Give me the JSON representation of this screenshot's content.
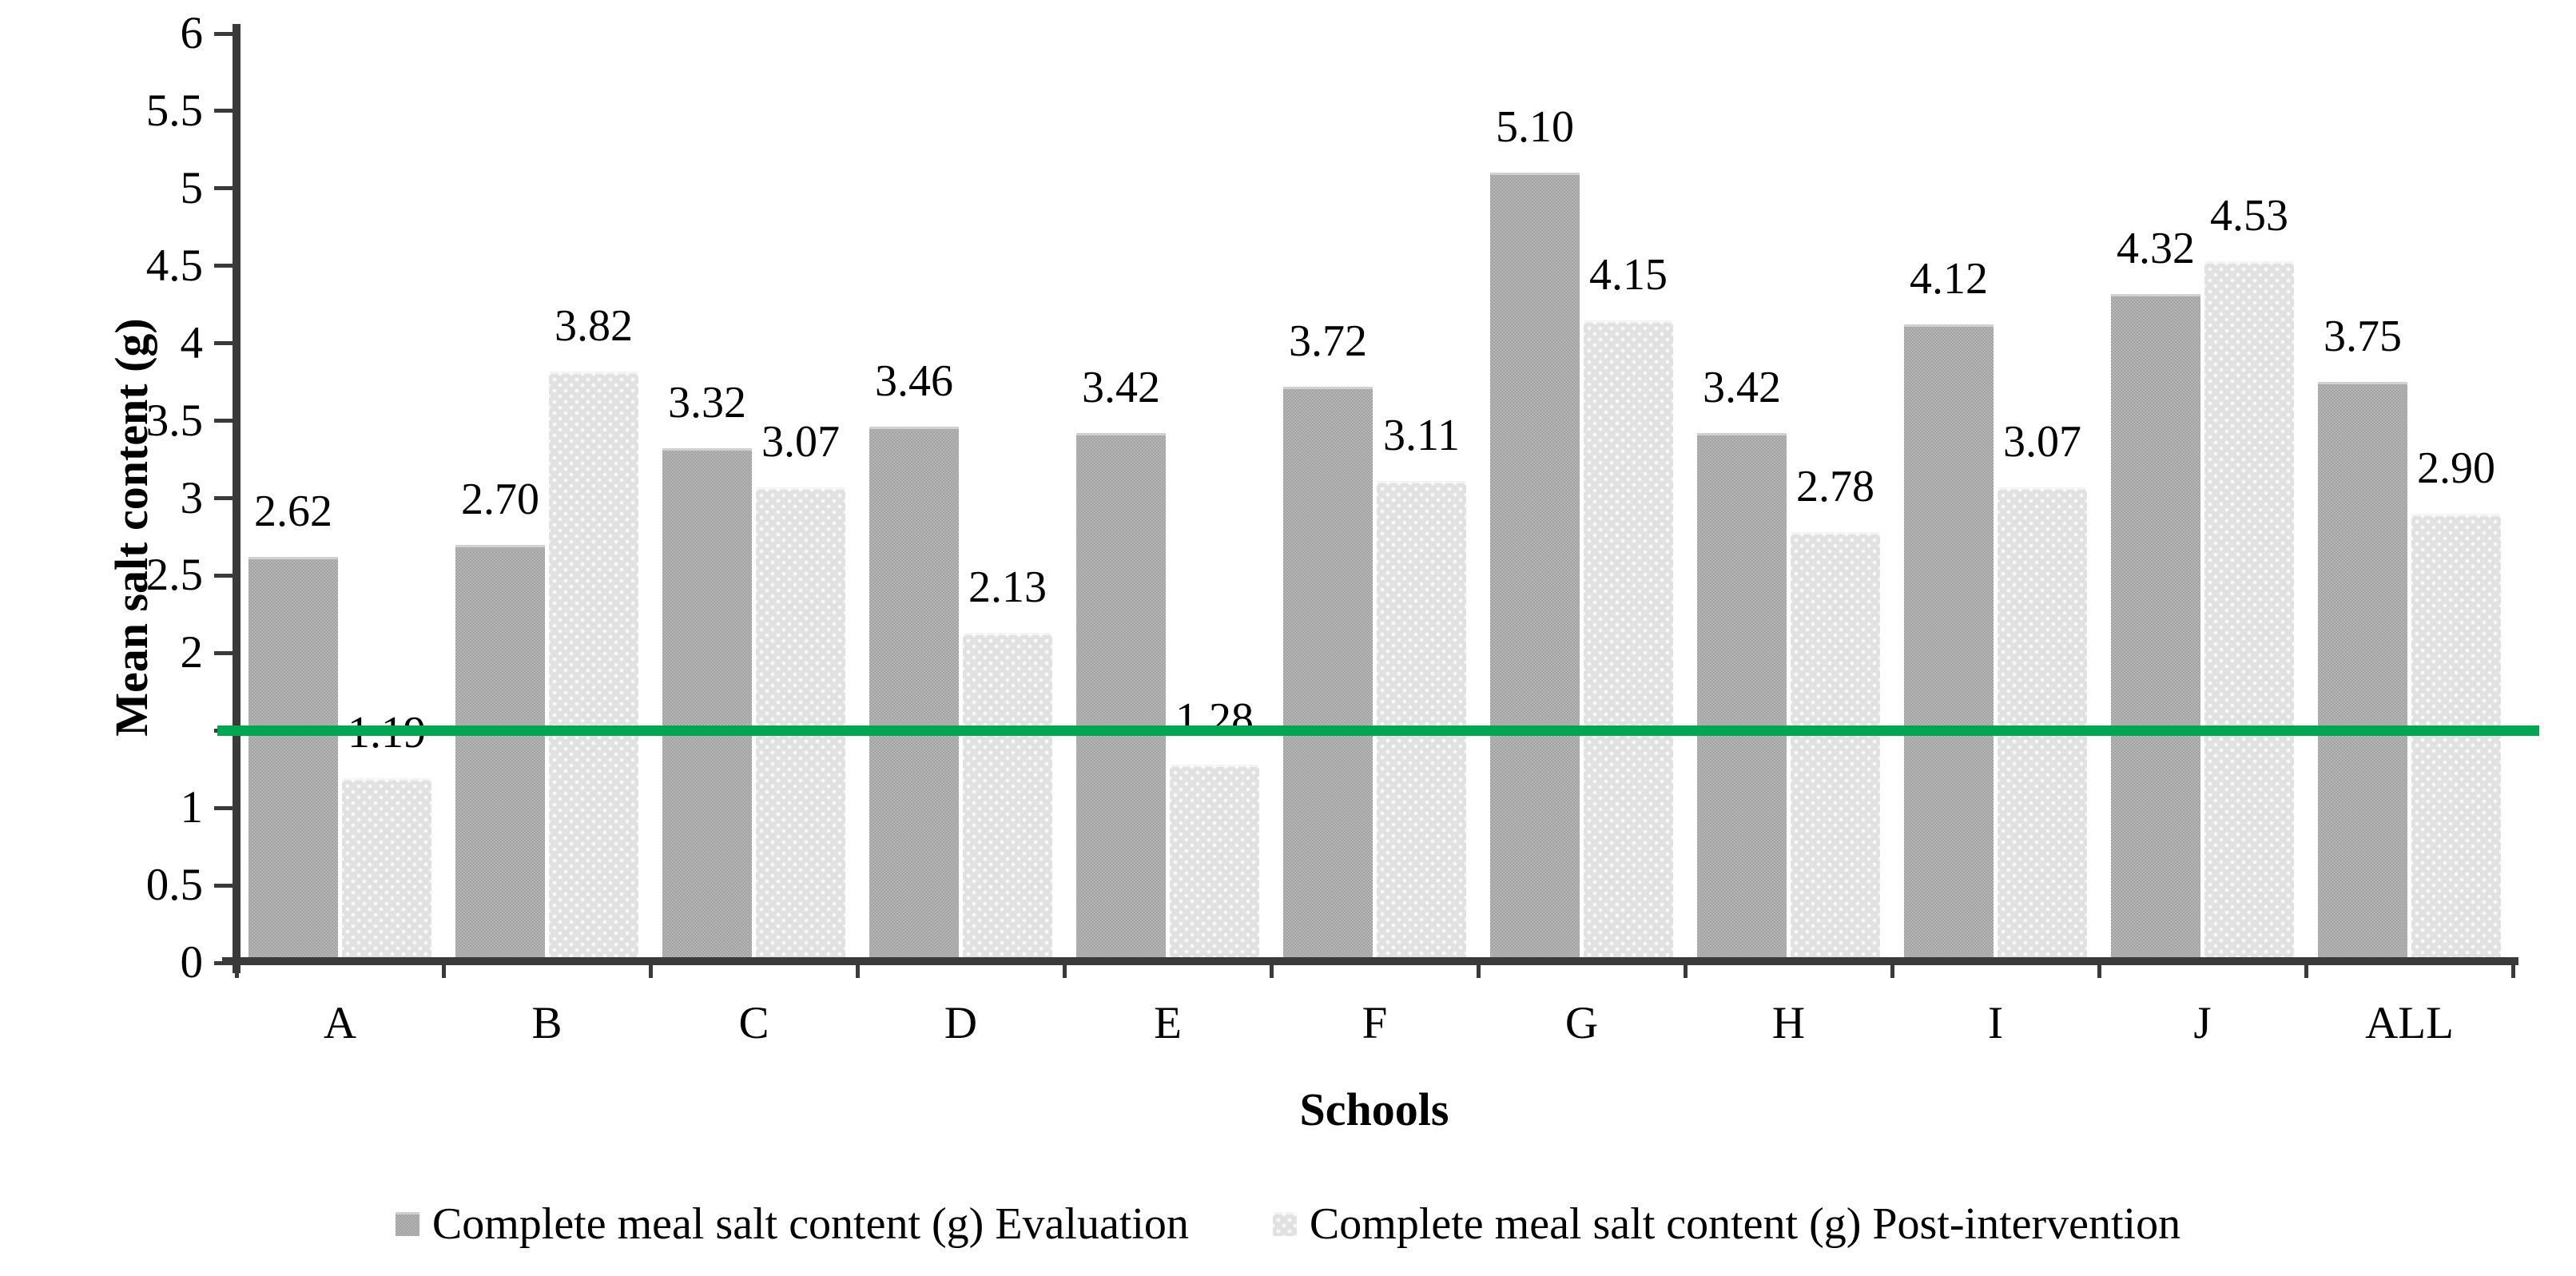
{
  "chart_data": {
    "type": "bar",
    "title": "",
    "categories": [
      "A",
      "B",
      "C",
      "D",
      "E",
      "F",
      "G",
      "H",
      "I",
      "J",
      "ALL"
    ],
    "series": [
      {
        "name": "Complete meal salt content (g) Evaluation",
        "style": "dark-woven-gray",
        "values": [
          2.62,
          2.7,
          3.32,
          3.46,
          3.42,
          3.72,
          5.1,
          3.42,
          4.12,
          4.32,
          3.75
        ],
        "labels": [
          "2.62",
          "2.70",
          "3.32",
          "3.46",
          "3.42",
          "3.72",
          "5.10",
          "3.42",
          "4.12",
          "4.32",
          "3.75"
        ]
      },
      {
        "name": "Complete meal salt content (g) Post-intervention",
        "style": "light-dotted-gray",
        "values": [
          1.19,
          3.82,
          3.07,
          2.13,
          1.28,
          3.11,
          4.15,
          2.78,
          3.07,
          4.53,
          2.9
        ],
        "labels": [
          "1.19",
          "3.82",
          "3.07",
          "2.13",
          "1.28",
          "3.11",
          "4.15",
          "2.78",
          "3.07",
          "4.53",
          "2.90"
        ]
      }
    ],
    "xlabel": "Schools",
    "ylabel": "Mean salt content (g)",
    "ylim": [
      0,
      6
    ],
    "yticks": [
      {
        "v": 0,
        "label": "0"
      },
      {
        "v": 0.5,
        "label": "0.5"
      },
      {
        "v": 1,
        "label": "1"
      },
      {
        "v": 1.5,
        "label": ""
      },
      {
        "v": 2,
        "label": "2"
      },
      {
        "v": 2.5,
        "label": "2.5"
      },
      {
        "v": 3,
        "label": "3"
      },
      {
        "v": 3.5,
        "label": "3.5"
      },
      {
        "v": 4,
        "label": "4"
      },
      {
        "v": 4.5,
        "label": "4.5"
      },
      {
        "v": 5,
        "label": "5"
      },
      {
        "v": 5.5,
        "label": "5.5"
      },
      {
        "v": 6,
        "label": "6"
      }
    ],
    "reference_line": {
      "value": 1.5,
      "color": "#00a651"
    },
    "grid": false,
    "legend_position": "bottom",
    "colors": {
      "evaluation_bar": "#ababab",
      "post_intervention_bar": "#e1e1e1",
      "axis": "#3a3a3a",
      "text": "#000000",
      "reference_green": "#00a651",
      "background": "#ffffff"
    }
  }
}
